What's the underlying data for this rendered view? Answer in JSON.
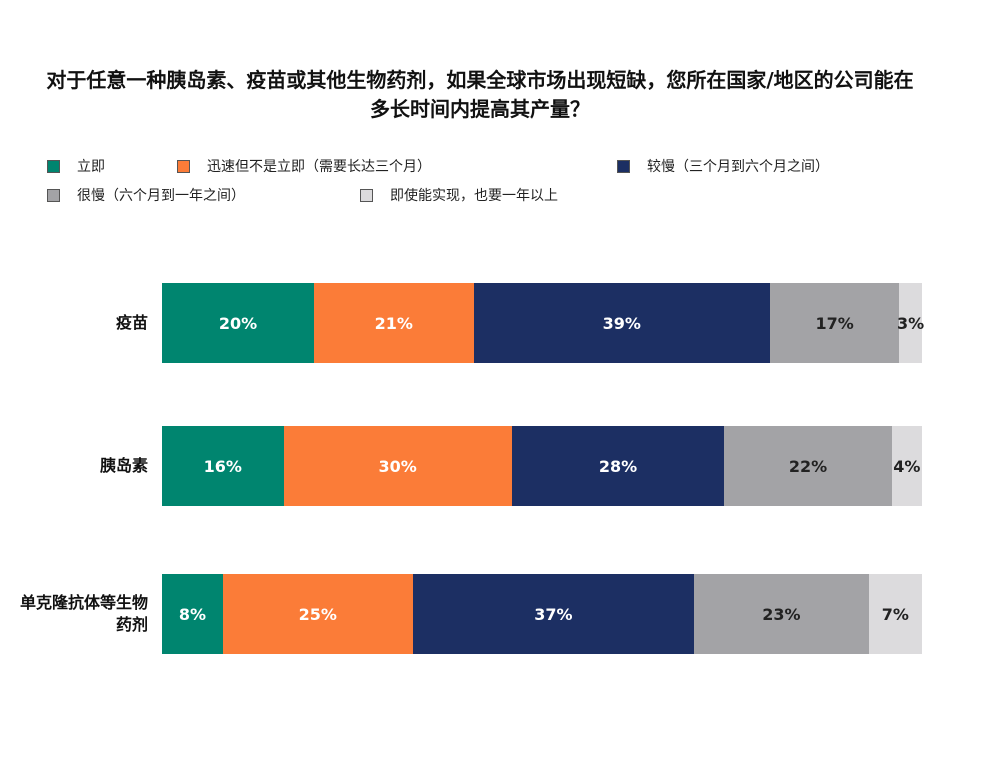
{
  "chart_data": {
    "type": "stacked-bar-horizontal",
    "title": "对于任意一种胰岛素、疫苗或其他生物药剂，如果全球市场出现短缺，您所在国家/地区的公司能在多长时间内提高其产量？",
    "categories": [
      "疫苗",
      "胰岛素",
      "单克隆抗体等生物药剂"
    ],
    "series": [
      {
        "name": "立即",
        "color": "#00856f",
        "values": [
          20,
          16,
          8
        ],
        "value_labels": [
          "20%",
          "16%",
          "8%"
        ]
      },
      {
        "name": "迅速但不是立即（需要长达三个月）",
        "color": "#fb7c38",
        "values": [
          21,
          30,
          25
        ],
        "value_labels": [
          "21%",
          "30%",
          "25%"
        ]
      },
      {
        "name": "较慢（三个月到六个月之间）",
        "color": "#1c2f63",
        "values": [
          39,
          28,
          37
        ],
        "value_labels": [
          "39%",
          "28%",
          "37%"
        ]
      },
      {
        "name": "很慢（六个月到一年之间）",
        "color": "#a3a3a6",
        "values": [
          17,
          22,
          23
        ],
        "value_labels": [
          "17%",
          "22%",
          "23%"
        ]
      },
      {
        "name": "即使能实现，也要一年以上",
        "color": "#dcdbdd",
        "values": [
          3,
          4,
          7
        ],
        "value_labels": [
          "3%",
          "4%",
          "7%"
        ]
      }
    ],
    "legend": "top-left"
  }
}
